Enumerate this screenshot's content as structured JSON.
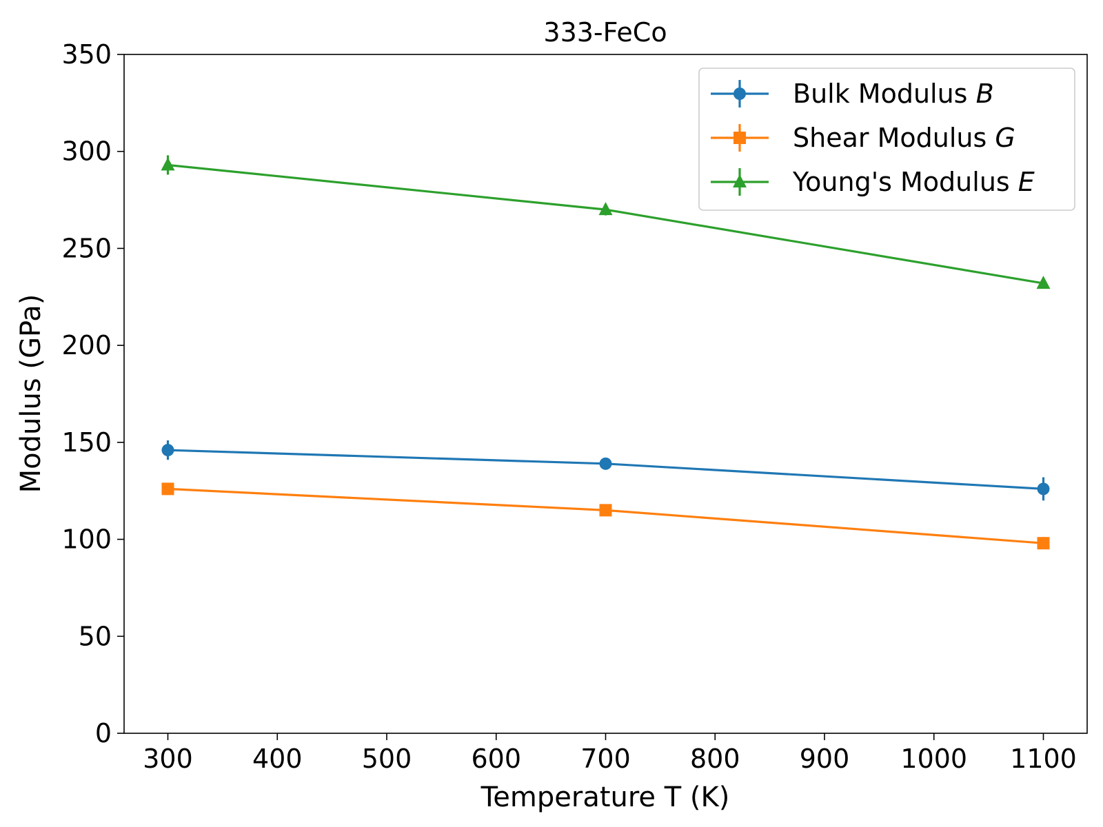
{
  "chart_data": {
    "type": "line",
    "title": "333-FeCo",
    "xlabel": "Temperature T (K)",
    "ylabel": "Modulus (GPa)",
    "xlim": [
      260,
      1140
    ],
    "ylim": [
      0,
      350
    ],
    "xticks": [
      300,
      400,
      500,
      600,
      700,
      800,
      900,
      1000,
      1100
    ],
    "yticks": [
      0,
      50,
      100,
      150,
      200,
      250,
      300,
      350
    ],
    "grid": false,
    "legend_position": "top-right",
    "x": [
      300,
      700,
      1100
    ],
    "series": [
      {
        "name": "Bulk Modulus",
        "symbol": "B",
        "marker": "circle",
        "color": "#1f77b4",
        "values": [
          146,
          139,
          126
        ],
        "errors": [
          5,
          2,
          6
        ]
      },
      {
        "name": "Shear Modulus",
        "symbol": "G",
        "marker": "square",
        "color": "#ff7f0e",
        "values": [
          126,
          115,
          98
        ],
        "errors": [
          1,
          1,
          1
        ]
      },
      {
        "name": "Young's Modulus",
        "symbol": "E",
        "marker": "triangle",
        "color": "#2ca02c",
        "values": [
          293,
          270,
          232
        ],
        "errors": [
          5,
          3,
          2
        ]
      }
    ]
  }
}
